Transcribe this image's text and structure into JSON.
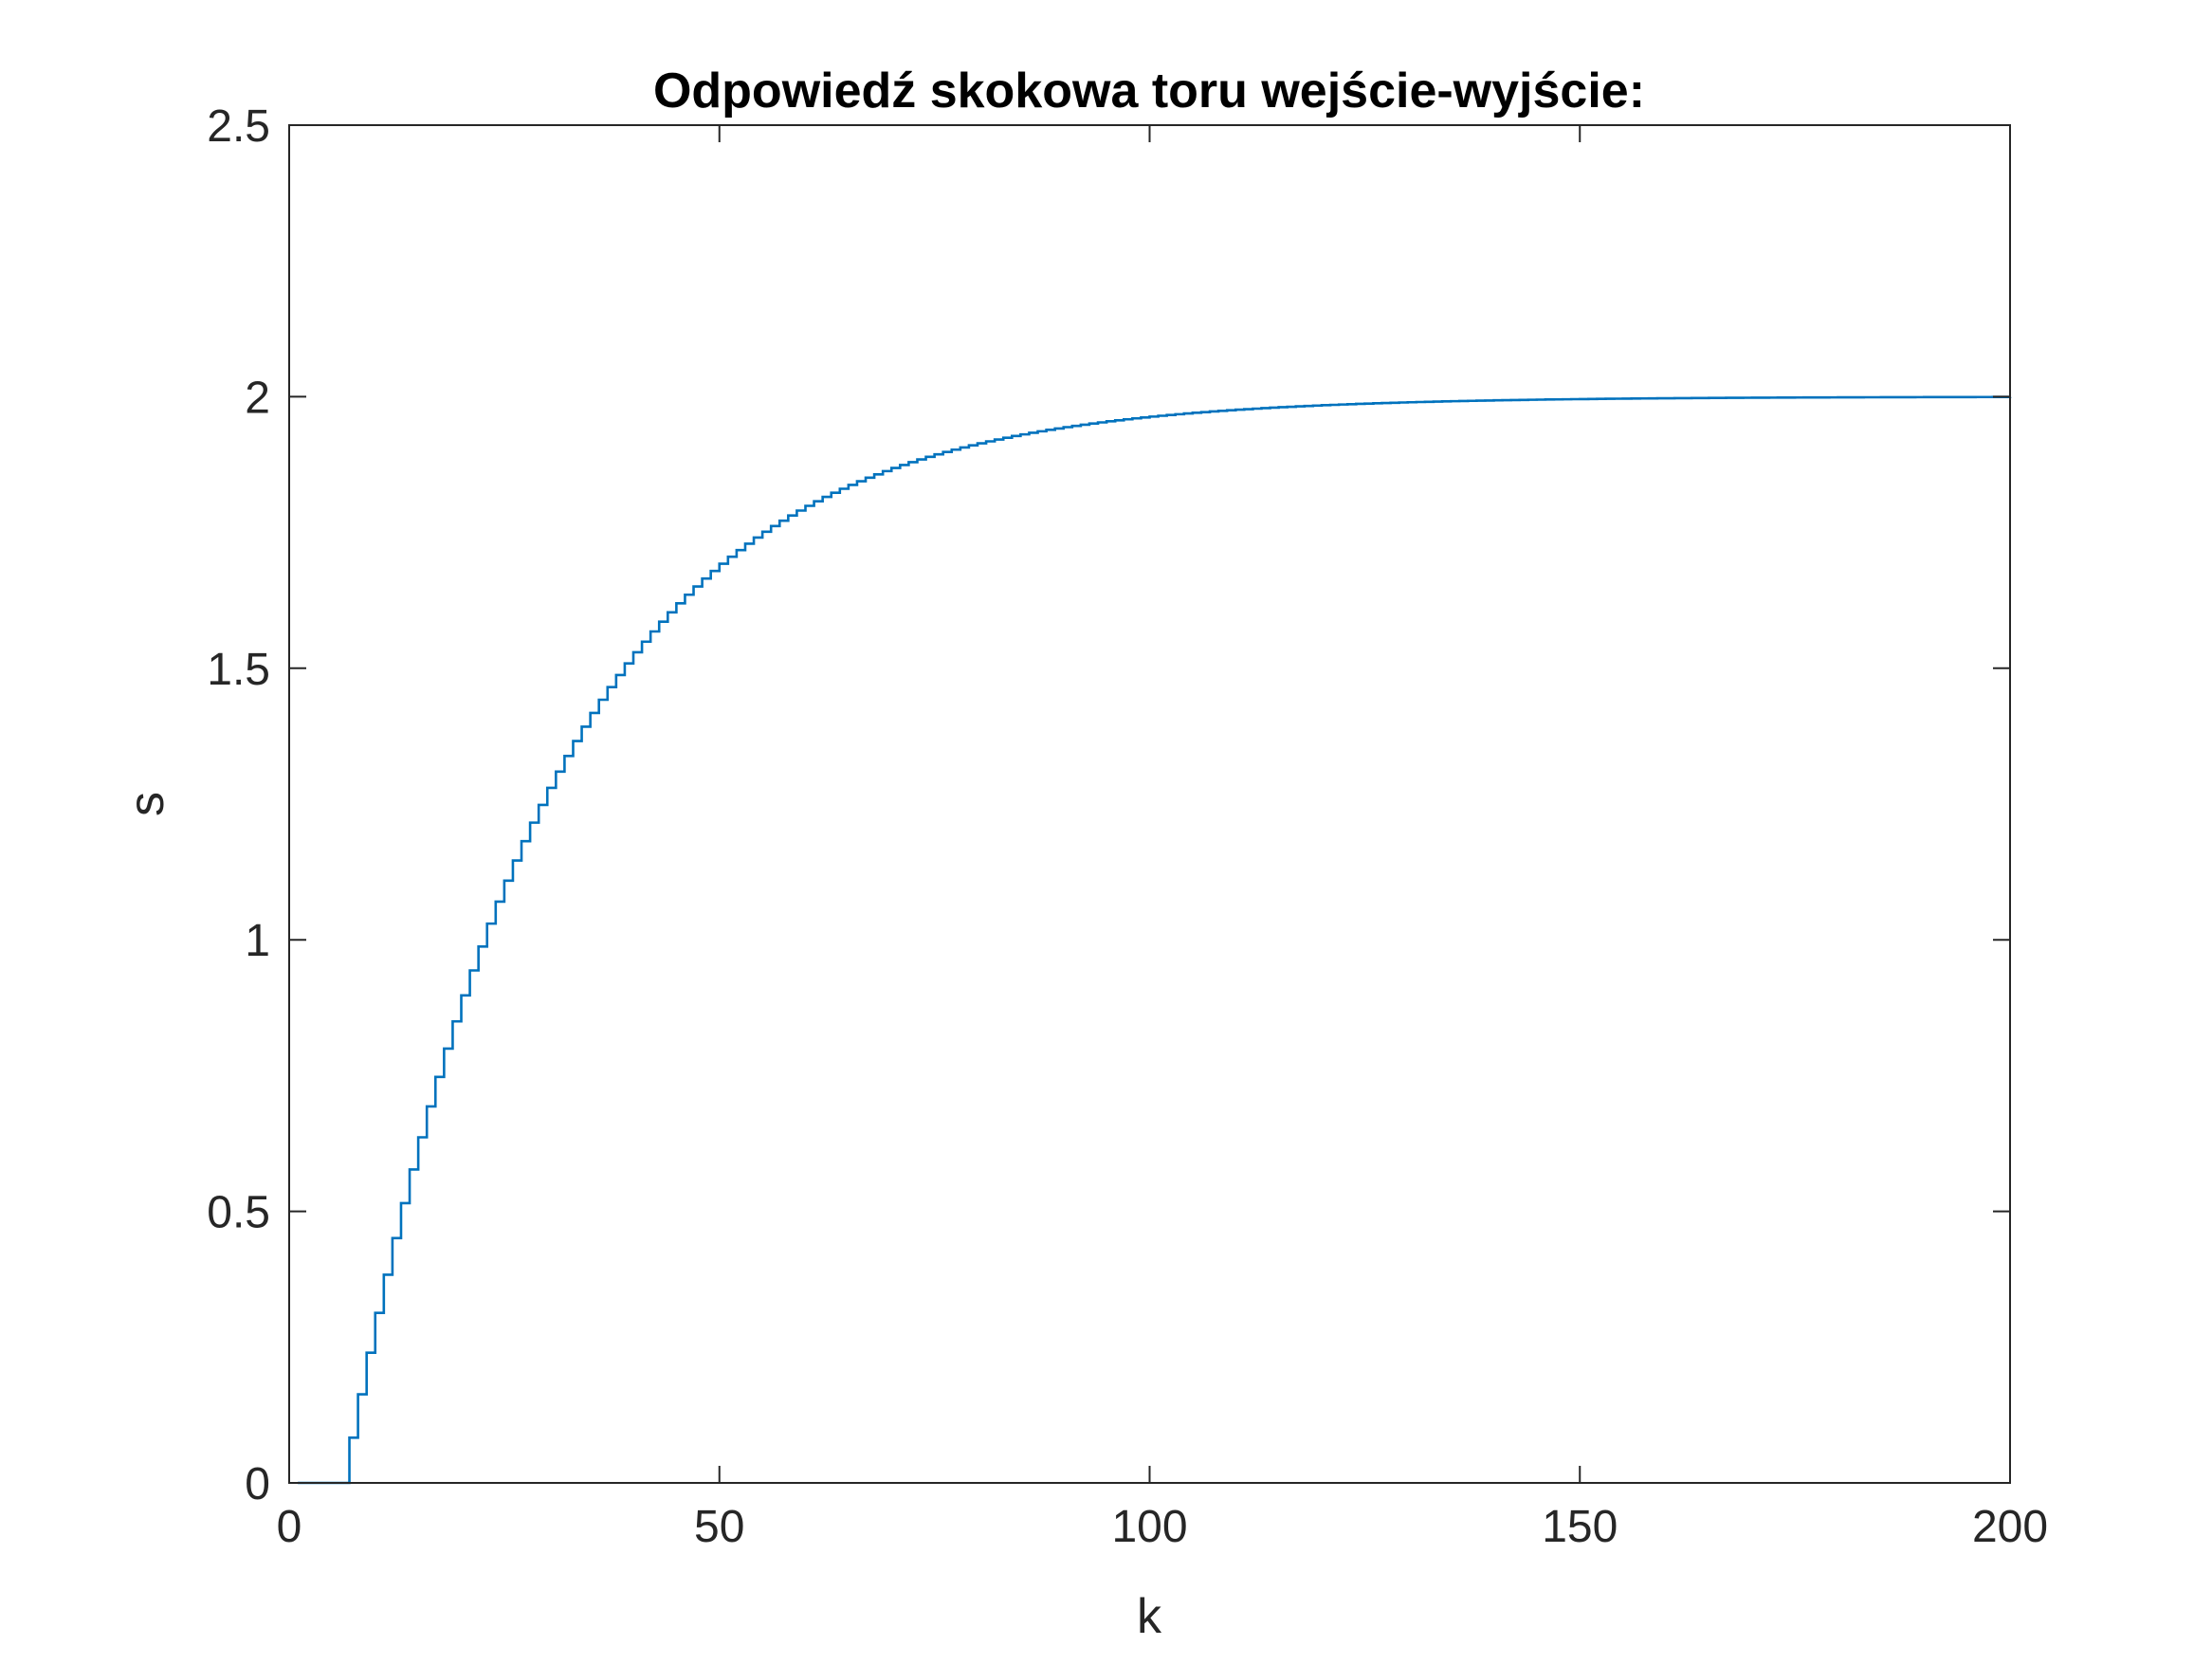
{
  "chart_data": {
    "type": "line",
    "style": "stairs",
    "title": "Odpowiedź skokowa toru wejście-wyjście:",
    "xlabel": "k",
    "ylabel": "s",
    "xlim": [
      0,
      200
    ],
    "ylim": [
      0,
      2.5
    ],
    "xticks": [
      0,
      50,
      100,
      150,
      200
    ],
    "xtick_labels": [
      "0",
      "50",
      "100",
      "150",
      "200"
    ],
    "yticks": [
      0,
      0.5,
      1,
      1.5,
      2,
      2.5
    ],
    "ytick_labels": [
      "0",
      "0.5",
      "1",
      "1.5",
      "2",
      "2.5"
    ],
    "grid": false,
    "box": true,
    "series": [
      {
        "color": "#0072bd",
        "dead_time": 6,
        "steady_state": 2.0,
        "time_constant": 23.5,
        "x": [
          1,
          2,
          3,
          4,
          5,
          6,
          7,
          8,
          9,
          10,
          11,
          12,
          13,
          14,
          15,
          16,
          17,
          18,
          19,
          20,
          22,
          24,
          26,
          28,
          30,
          32,
          34,
          36,
          38,
          40,
          45,
          50,
          55,
          60,
          70,
          80,
          90,
          100,
          110,
          120,
          130,
          140,
          150,
          160,
          170,
          180,
          190,
          200
        ],
        "y": [
          0,
          0,
          0,
          0,
          0,
          0,
          0.1,
          0.19,
          0.28,
          0.36,
          0.44,
          0.52,
          0.59,
          0.66,
          0.72,
          0.78,
          0.84,
          0.9,
          0.95,
          1.0,
          1.1,
          1.18,
          1.26,
          1.33,
          1.4,
          1.46,
          1.51,
          1.56,
          1.61,
          1.65,
          1.74,
          1.8,
          1.85,
          1.89,
          1.94,
          1.97,
          1.98,
          1.99,
          2.0,
          2.0,
          2.0,
          2.0,
          2.0,
          2.0,
          2.0,
          2.0,
          2.0,
          2.0
        ]
      }
    ]
  }
}
